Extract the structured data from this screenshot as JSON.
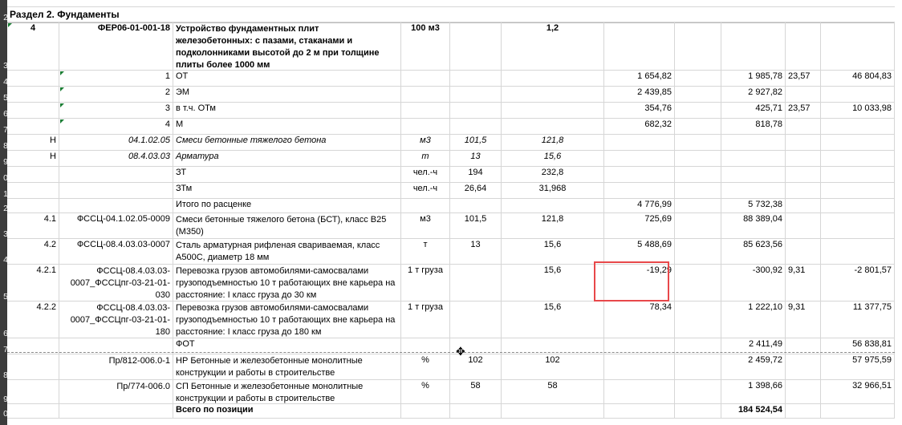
{
  "sheet": {
    "section_title": "Раздел 2. Фундаменты",
    "row_numbers": [
      "2",
      "3",
      "4",
      "5",
      "6",
      "7",
      "8",
      "9",
      "0",
      "1",
      "2",
      "3",
      "4",
      "5",
      "6",
      "7",
      "8",
      "9",
      "0"
    ],
    "rows": [
      {
        "c0": "4",
        "c1": "ФЕР06-01-001-18",
        "c2": "Устройство фундаментных плит железобетонных: с пазами, стаканами и подколонниками высотой до 2 м при толщине плиты более 1000 мм",
        "c3": "100 м3",
        "c5": "1,2"
      },
      {
        "c1": "1",
        "c2": "ОТ",
        "c6": "1 654,82",
        "c8": "1 985,78",
        "c9": "23,57",
        "c10": "46 804,83"
      },
      {
        "c1": "2",
        "c2": "ЭМ",
        "c6": "2 439,85",
        "c8": "2 927,82"
      },
      {
        "c1": "3",
        "c2": "в т.ч. ОТм",
        "c6": "354,76",
        "c8": "425,71",
        "c9": "23,57",
        "c10": "10 033,98"
      },
      {
        "c1": "4",
        "c2": "М",
        "c6": "682,32",
        "c8": "818,78"
      },
      {
        "c0": "Н",
        "c1": "04.1.02.05",
        "c2": "Смеси бетонные тяжелого бетона",
        "c3": "м3",
        "c4": "101,5",
        "c5": "121,8"
      },
      {
        "c0": "Н",
        "c1": "08.4.03.03",
        "c2": "Арматура",
        "c3": "т",
        "c4": "13",
        "c5": "15,6"
      },
      {
        "c2": "ЗТ",
        "c3": "чел.-ч",
        "c4": "194",
        "c5": "232,8"
      },
      {
        "c2": "ЗТм",
        "c3": "чел.-ч",
        "c4": "26,64",
        "c5": "31,968"
      },
      {
        "c2": "Итого по расценке",
        "c6": "4 776,99",
        "c8": "5 732,38"
      },
      {
        "c0": "4.1",
        "c1": "ФССЦ-04.1.02.05-0009",
        "c2": "Смеси бетонные тяжелого бетона (БСТ), класс В25 (М350)",
        "c3": "м3",
        "c4": "101,5",
        "c5": "121,8",
        "c6": "725,69",
        "c8": "88 389,04"
      },
      {
        "c0": "4.2",
        "c1": "ФССЦ-08.4.03.03-0007",
        "c2": "Сталь арматурная рифленая свариваемая, класс А500С, диаметр 18 мм",
        "c3": "т",
        "c4": "13",
        "c5": "15,6",
        "c6": "5 488,69",
        "c8": "85 623,56"
      },
      {
        "c0": "4.2.1",
        "c1": "ФССЦ-08.4.03.03-0007_ФССЦпг-03-21-01-030",
        "c2": "Перевозка грузов автомобилями-самосвалами грузоподъемностью 10 т работающих вне карьера на расстояние: I класс груза до 30 км",
        "c3": "1 т груза",
        "c5": "15,6",
        "c6": "-19,29",
        "c8": "-300,92",
        "c9": "9,31",
        "c10": "-2 801,57"
      },
      {
        "c0": "4.2.2",
        "c1": "ФССЦ-08.4.03.03-0007_ФССЦпг-03-21-01-180",
        "c2": "Перевозка грузов автомобилями-самосвалами грузоподъемностью 10 т работающих вне карьера на расстояние: I класс груза до 180 км",
        "c3": "1 т груза",
        "c5": "15,6",
        "c6": "78,34",
        "c8": "1 222,10",
        "c9": "9,31",
        "c10": "11 377,75"
      },
      {
        "c2": "ФОТ",
        "c8": "2 411,49",
        "c10": "56 838,81"
      },
      {
        "c1": "Пр/812-006.0-1",
        "c2": "НР Бетонные и железобетонные монолитные конструкции и работы в строительстве",
        "c3": "%",
        "c4": "102",
        "c5": "102",
        "c8": "2 459,72",
        "c10": "57 975,59"
      },
      {
        "c1": "Пр/774-006.0",
        "c2": "СП Бетонные и железобетонные монолитные конструкции и работы в строительстве",
        "c3": "%",
        "c4": "58",
        "c5": "58",
        "c8": "1 398,66",
        "c10": "32 966,51"
      },
      {
        "c2": "Всего по позиции",
        "c8": "184 524,54"
      }
    ]
  }
}
